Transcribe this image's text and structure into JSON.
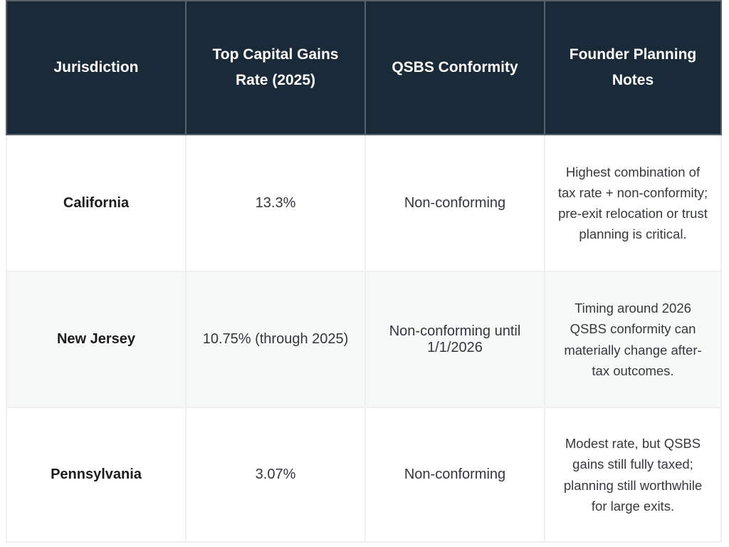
{
  "table": {
    "columns": [
      {
        "label": "Jurisdiction"
      },
      {
        "label": "Top Capital Gains Rate (2025)"
      },
      {
        "label": "QSBS Conformity"
      },
      {
        "label": "Founder Planning Notes"
      }
    ],
    "rows": [
      {
        "jurisdiction": "California",
        "rate": "13.3%",
        "conformity": "Non-conforming",
        "notes": "Highest combination of tax rate + non-conformity; pre-exit relocation or trust planning is critical."
      },
      {
        "jurisdiction": "New Jersey",
        "rate": "10.75% (through 2025)",
        "conformity": "Non-conforming until 1/1/2026",
        "notes": "Timing around 2026 QSBS conformity can materially change after-tax outcomes."
      },
      {
        "jurisdiction": "Pennsylvania",
        "rate": "3.07%",
        "conformity": "Non-conforming",
        "notes": "Modest rate, but QSBS gains still fully taxed; planning still worthwhile for large exits."
      }
    ]
  },
  "colors": {
    "header_bg": "#1b2a38",
    "header_text": "#ffffff",
    "header_border": "#59616b",
    "body_border": "#edeff0",
    "row_alt_bg": "#f7f8f8",
    "body_text": "#33373b",
    "jurisdiction_text": "#1c1c1c"
  },
  "chart_data": {
    "type": "table",
    "title": "",
    "columns": [
      "Jurisdiction",
      "Top Capital Gains Rate (2025)",
      "QSBS Conformity",
      "Founder Planning Notes"
    ],
    "rows": [
      [
        "California",
        "13.3%",
        "Non-conforming",
        "Highest combination of tax rate + non-conformity; pre-exit relocation or trust planning is critical."
      ],
      [
        "New Jersey",
        "10.75% (through 2025)",
        "Non-conforming until 1/1/2026",
        "Timing around 2026 QSBS conformity can materially change after-tax outcomes."
      ],
      [
        "Pennsylvania",
        "3.07%",
        "Non-conforming",
        "Modest rate, but QSBS gains still fully taxed; planning still worthwhile for large exits."
      ]
    ],
    "top_capital_gains_rate_pct": [
      13.3,
      10.75,
      3.07
    ]
  }
}
